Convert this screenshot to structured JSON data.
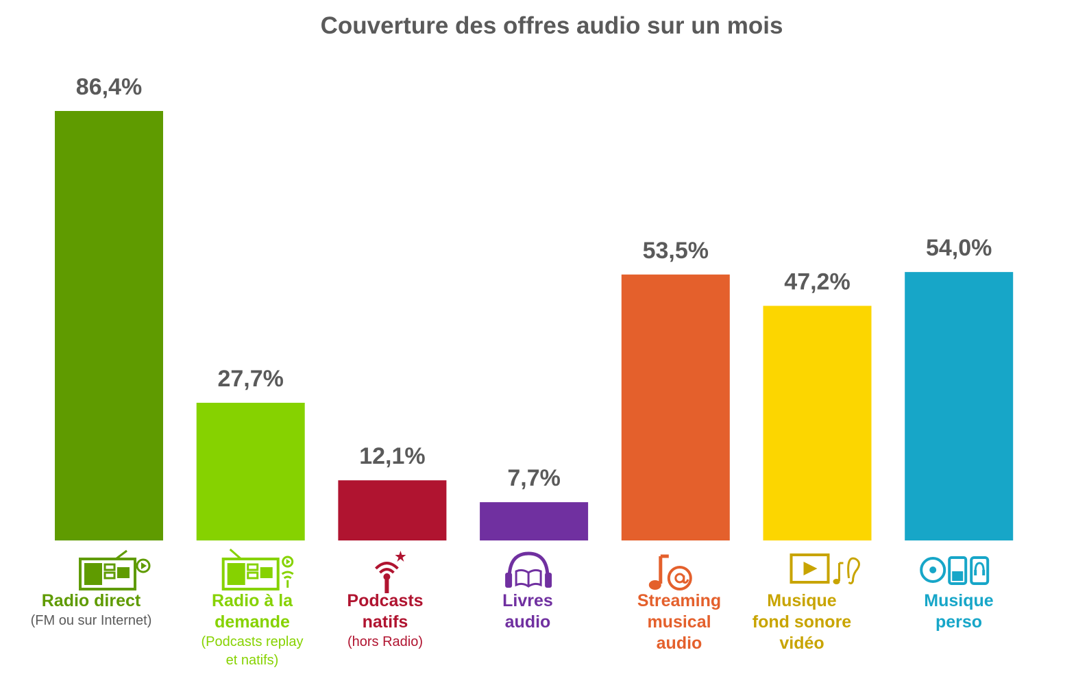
{
  "chart_data": {
    "type": "bar",
    "title": "Couverture des offres audio sur un mois",
    "xlabel": "",
    "ylabel": "",
    "ylim": [
      0,
      100
    ],
    "categories": [
      {
        "label": "Radio direct",
        "sublabel": "(FM ou sur Internet)",
        "value": 86.4,
        "value_label": "86,4%",
        "color": "#5f9b00",
        "icon": "radio-live-icon"
      },
      {
        "label": "Radio à la\ndemande",
        "sublabel": "(Podcasts replay\net natifs)",
        "value": 27.7,
        "value_label": "27,7%",
        "color": "#86d200",
        "icon": "radio-on-demand-icon"
      },
      {
        "label": "Podcasts\nnatifs",
        "sublabel": "(hors Radio)",
        "value": 12.1,
        "value_label": "12,1%",
        "color": "#b01430",
        "icon": "podcast-icon"
      },
      {
        "label": "Livres\naudio",
        "sublabel": "",
        "value": 7.7,
        "value_label": "7,7%",
        "color": "#7030a0",
        "icon": "audiobook-headphones-icon"
      },
      {
        "label": "Streaming\nmusical\naudio",
        "sublabel": "",
        "value": 53.5,
        "value_label": "53,5%",
        "color": "#e4602c",
        "icon": "music-streaming-icon"
      },
      {
        "label": "Musique\nfond sonore\nvidéo",
        "sublabel": "",
        "value": 47.2,
        "value_label": "47,2%",
        "color": "#fcd600",
        "icon": "video-sound-icon"
      },
      {
        "label": "Musique\nperso",
        "sublabel": "",
        "value": 54.0,
        "value_label": "54,0%",
        "color": "#17a6c8",
        "icon": "personal-music-devices-icon"
      }
    ],
    "label_colors": [
      "#5f9b00",
      "#86d200",
      "#b01430",
      "#7030a0",
      "#e4602c",
      "#c8a400",
      "#17a6c8"
    ],
    "value_label_color": "#5a5a5a"
  }
}
